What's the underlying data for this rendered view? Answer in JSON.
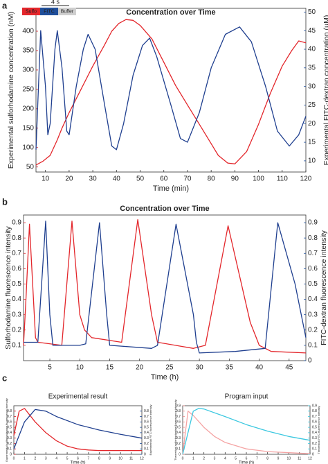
{
  "panel_labels": [
    "a",
    "b",
    "c"
  ],
  "chart_data": [
    {
      "type": "line",
      "title": "Concentration over Time",
      "xlabel": "Time (min)",
      "ylabel": "Experimental sulforhodamine concentration (nM)",
      "y2label": "Experimental FITC-dextran concentration (μM)",
      "ylabel_color": "#d9262c",
      "y2label_color": "#1f4e9a",
      "scale_bar_label": "4 s",
      "legend": [
        {
          "label": "Sulfo",
          "color": "#e3262b"
        },
        {
          "label": "FITC",
          "color": "#1f4e9a"
        },
        {
          "label": "Buffer",
          "color": "#cfcfcf"
        }
      ],
      "xlim": [
        6,
        120
      ],
      "xticks": [
        10,
        20,
        30,
        40,
        50,
        60,
        70,
        80,
        90,
        100,
        110,
        120
      ],
      "ylim": [
        37,
        459
      ],
      "yticks": [
        50,
        100,
        150,
        200,
        250,
        300,
        350,
        400,
        450
      ],
      "y2lim": [
        7,
        51
      ],
      "y2ticks": [
        10,
        15,
        20,
        25,
        30,
        35,
        40,
        45,
        50
      ],
      "series": [
        {
          "color": "#e3262b",
          "x": [
            6,
            9,
            12,
            15,
            17,
            20,
            25,
            30,
            35,
            38,
            41,
            44,
            47,
            50,
            55,
            60,
            65,
            70,
            75,
            80,
            83,
            87,
            90,
            95,
            100,
            105,
            110,
            114,
            117,
            120
          ],
          "values": [
            55,
            65,
            80,
            120,
            150,
            190,
            250,
            310,
            365,
            400,
            420,
            430,
            428,
            415,
            380,
            320,
            260,
            210,
            160,
            110,
            80,
            60,
            58,
            90,
            160,
            240,
            310,
            350,
            375,
            370
          ]
        },
        {
          "color": "#1f3f8f",
          "axis": "y2",
          "x": [
            6,
            8,
            10,
            11,
            12,
            14,
            15,
            17,
            19,
            20,
            23,
            26,
            28,
            31,
            35,
            38,
            40,
            43,
            47,
            51,
            54,
            57,
            63,
            67,
            70,
            75,
            80,
            86,
            92,
            97,
            103,
            108,
            113,
            117,
            120
          ],
          "values": [
            13,
            45,
            30,
            17,
            20,
            40,
            45,
            35,
            18,
            17,
            30,
            40,
            44,
            40,
            25,
            14,
            13,
            20,
            33,
            41,
            43,
            38,
            25,
            16,
            15,
            23,
            35,
            44,
            46,
            42,
            30,
            18,
            14,
            17,
            22
          ]
        }
      ]
    },
    {
      "type": "line",
      "title": "Concentration over Time",
      "xlabel": "Time (h)",
      "ylabel": "Sulforhodamine fluorescence intensity",
      "y2label": "FITC-dextran fluorescence intensity",
      "ylabel_color": "#d9262c",
      "y2label_color": "#1f4e9a",
      "xlim": [
        0.6,
        47.8
      ],
      "xticks": [
        5,
        10,
        15,
        20,
        25,
        30,
        35,
        40,
        45
      ],
      "ylim": [
        0,
        0.95
      ],
      "yticks": [
        0.1,
        0.2,
        0.3,
        0.4,
        0.5,
        0.6,
        0.7,
        0.8,
        0.9
      ],
      "y2lim": [
        0,
        0.95
      ],
      "y2ticks": [
        0,
        0.1,
        0.2,
        0.3,
        0.4,
        0.5,
        0.6,
        0.7,
        0.8,
        0.9
      ],
      "series": [
        {
          "color": "#e3262b",
          "x": [
            0.6,
            1.0,
            1.6,
            2.6,
            3,
            7,
            8.7,
            10,
            10.8,
            12,
            17,
            19.7,
            22,
            23,
            29,
            31,
            34.8,
            38.5,
            39.5,
            40,
            42,
            47.8
          ],
          "values": [
            0.1,
            0.4,
            0.89,
            0.15,
            0.12,
            0.1,
            0.91,
            0.3,
            0.2,
            0.15,
            0.12,
            0.92,
            0.3,
            0.12,
            0.08,
            0.1,
            0.88,
            0.25,
            0.15,
            0.1,
            0.06,
            0.05
          ]
        },
        {
          "color": "#1f3f8f",
          "axis": "y2",
          "x": [
            0.6,
            3,
            4.3,
            5,
            5.5,
            10,
            11,
            13.3,
            14.5,
            15,
            22,
            23,
            26.1,
            29,
            29.5,
            30,
            36,
            41,
            43.1,
            46,
            47.8
          ],
          "values": [
            0.12,
            0.12,
            0.91,
            0.3,
            0.1,
            0.1,
            0.11,
            0.9,
            0.3,
            0.1,
            0.08,
            0.1,
            0.89,
            0.3,
            0.12,
            0.05,
            0.06,
            0.08,
            0.9,
            0.5,
            0.15
          ]
        }
      ]
    },
    {
      "type": "line",
      "title": "Experimental result",
      "xlabel": "Time (h)",
      "ylabel": "Experimental sulforhodamine fluorescence intensity",
      "y2label": "Experimental FITC fluorescence intensity",
      "ylabel_color": "#d9262c",
      "y2label_color": "#1f4e9a",
      "xlim": [
        0,
        12
      ],
      "xticks": [
        0,
        1,
        2,
        3,
        4,
        5,
        6,
        7,
        8,
        9,
        10,
        11,
        12
      ],
      "ylim": [
        0,
        0.9
      ],
      "yticks": [
        0,
        0.1,
        0.2,
        0.3,
        0.4,
        0.5,
        0.6,
        0.7,
        0.8
      ],
      "y2lim": [
        0,
        0.9
      ],
      "y2ticks": [
        0,
        0.1,
        0.2,
        0.3,
        0.4,
        0.5,
        0.6,
        0.7,
        0.8
      ],
      "series": [
        {
          "color": "#e3262b",
          "x": [
            0,
            0.5,
            1,
            2,
            3,
            4,
            5,
            6,
            7,
            8,
            10,
            12
          ],
          "values": [
            0.35,
            0.8,
            0.85,
            0.6,
            0.4,
            0.25,
            0.15,
            0.1,
            0.08,
            0.07,
            0.07,
            0.07
          ]
        },
        {
          "color": "#1f3f8f",
          "axis": "y2",
          "x": [
            0,
            1,
            2,
            3,
            4,
            6,
            8,
            10,
            12
          ],
          "values": [
            0.1,
            0.6,
            0.83,
            0.8,
            0.7,
            0.55,
            0.45,
            0.37,
            0.3
          ]
        }
      ]
    },
    {
      "type": "line",
      "title": "Program input",
      "xlabel": "Time (h)",
      "ylabel": "Theoretical sulforhodamine fluorescence intensity",
      "y2label": "Theoretical FITC fluorescence intensity",
      "ylabel_color": "#f08a8a",
      "y2label_color": "#3cc8e0",
      "xlim": [
        0,
        12
      ],
      "xticks": [
        0,
        1,
        2,
        3,
        4,
        5,
        6,
        7,
        8,
        9,
        10,
        11,
        12
      ],
      "ylim": [
        0,
        0.9
      ],
      "yticks": [
        0,
        0.1,
        0.2,
        0.3,
        0.4,
        0.5,
        0.6,
        0.7,
        0.8,
        0.9
      ],
      "y2lim": [
        0,
        0.9
      ],
      "y2ticks": [
        0,
        0.1,
        0.2,
        0.3,
        0.4,
        0.5,
        0.6,
        0.7,
        0.8,
        0.9
      ],
      "series": [
        {
          "color": "#f5a3a3",
          "x": [
            0,
            0.5,
            1,
            2,
            3,
            4,
            6,
            8,
            12
          ],
          "values": [
            0,
            0.8,
            0.72,
            0.5,
            0.33,
            0.22,
            0.1,
            0.05,
            0.01
          ]
        },
        {
          "color": "#3cc8e0",
          "axis": "y2",
          "x": [
            0,
            1,
            1.5,
            2,
            4,
            6,
            8,
            10,
            12
          ],
          "values": [
            0,
            0.8,
            0.85,
            0.84,
            0.7,
            0.55,
            0.43,
            0.33,
            0.26
          ]
        }
      ]
    }
  ]
}
